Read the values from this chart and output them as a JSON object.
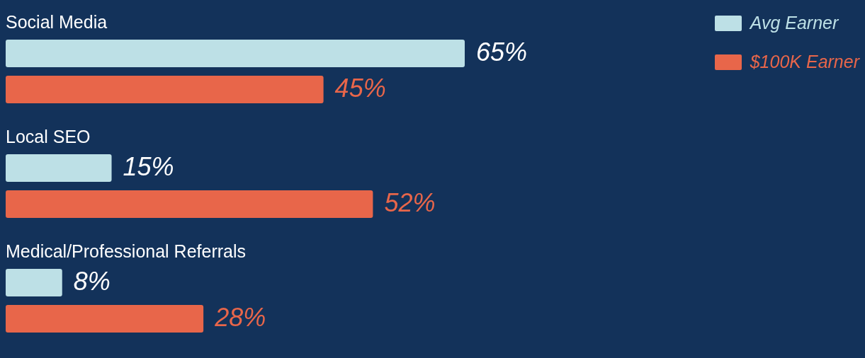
{
  "chart_data": {
    "type": "bar",
    "orientation": "horizontal",
    "legend": "top right",
    "categories": [
      "Social Media",
      "Local SEO",
      "Medical/Professional Referrals"
    ],
    "series": [
      {
        "name": "Avg Earner",
        "color": "#bde0e6",
        "values": [
          65,
          15,
          8
        ],
        "value_labels": [
          "65%",
          "15%",
          "8%"
        ]
      },
      {
        "name": "$100K Earner",
        "color": "#e8664a",
        "values": [
          45,
          52,
          28
        ],
        "value_labels": [
          "45%",
          "52%",
          "28%"
        ]
      }
    ]
  }
}
